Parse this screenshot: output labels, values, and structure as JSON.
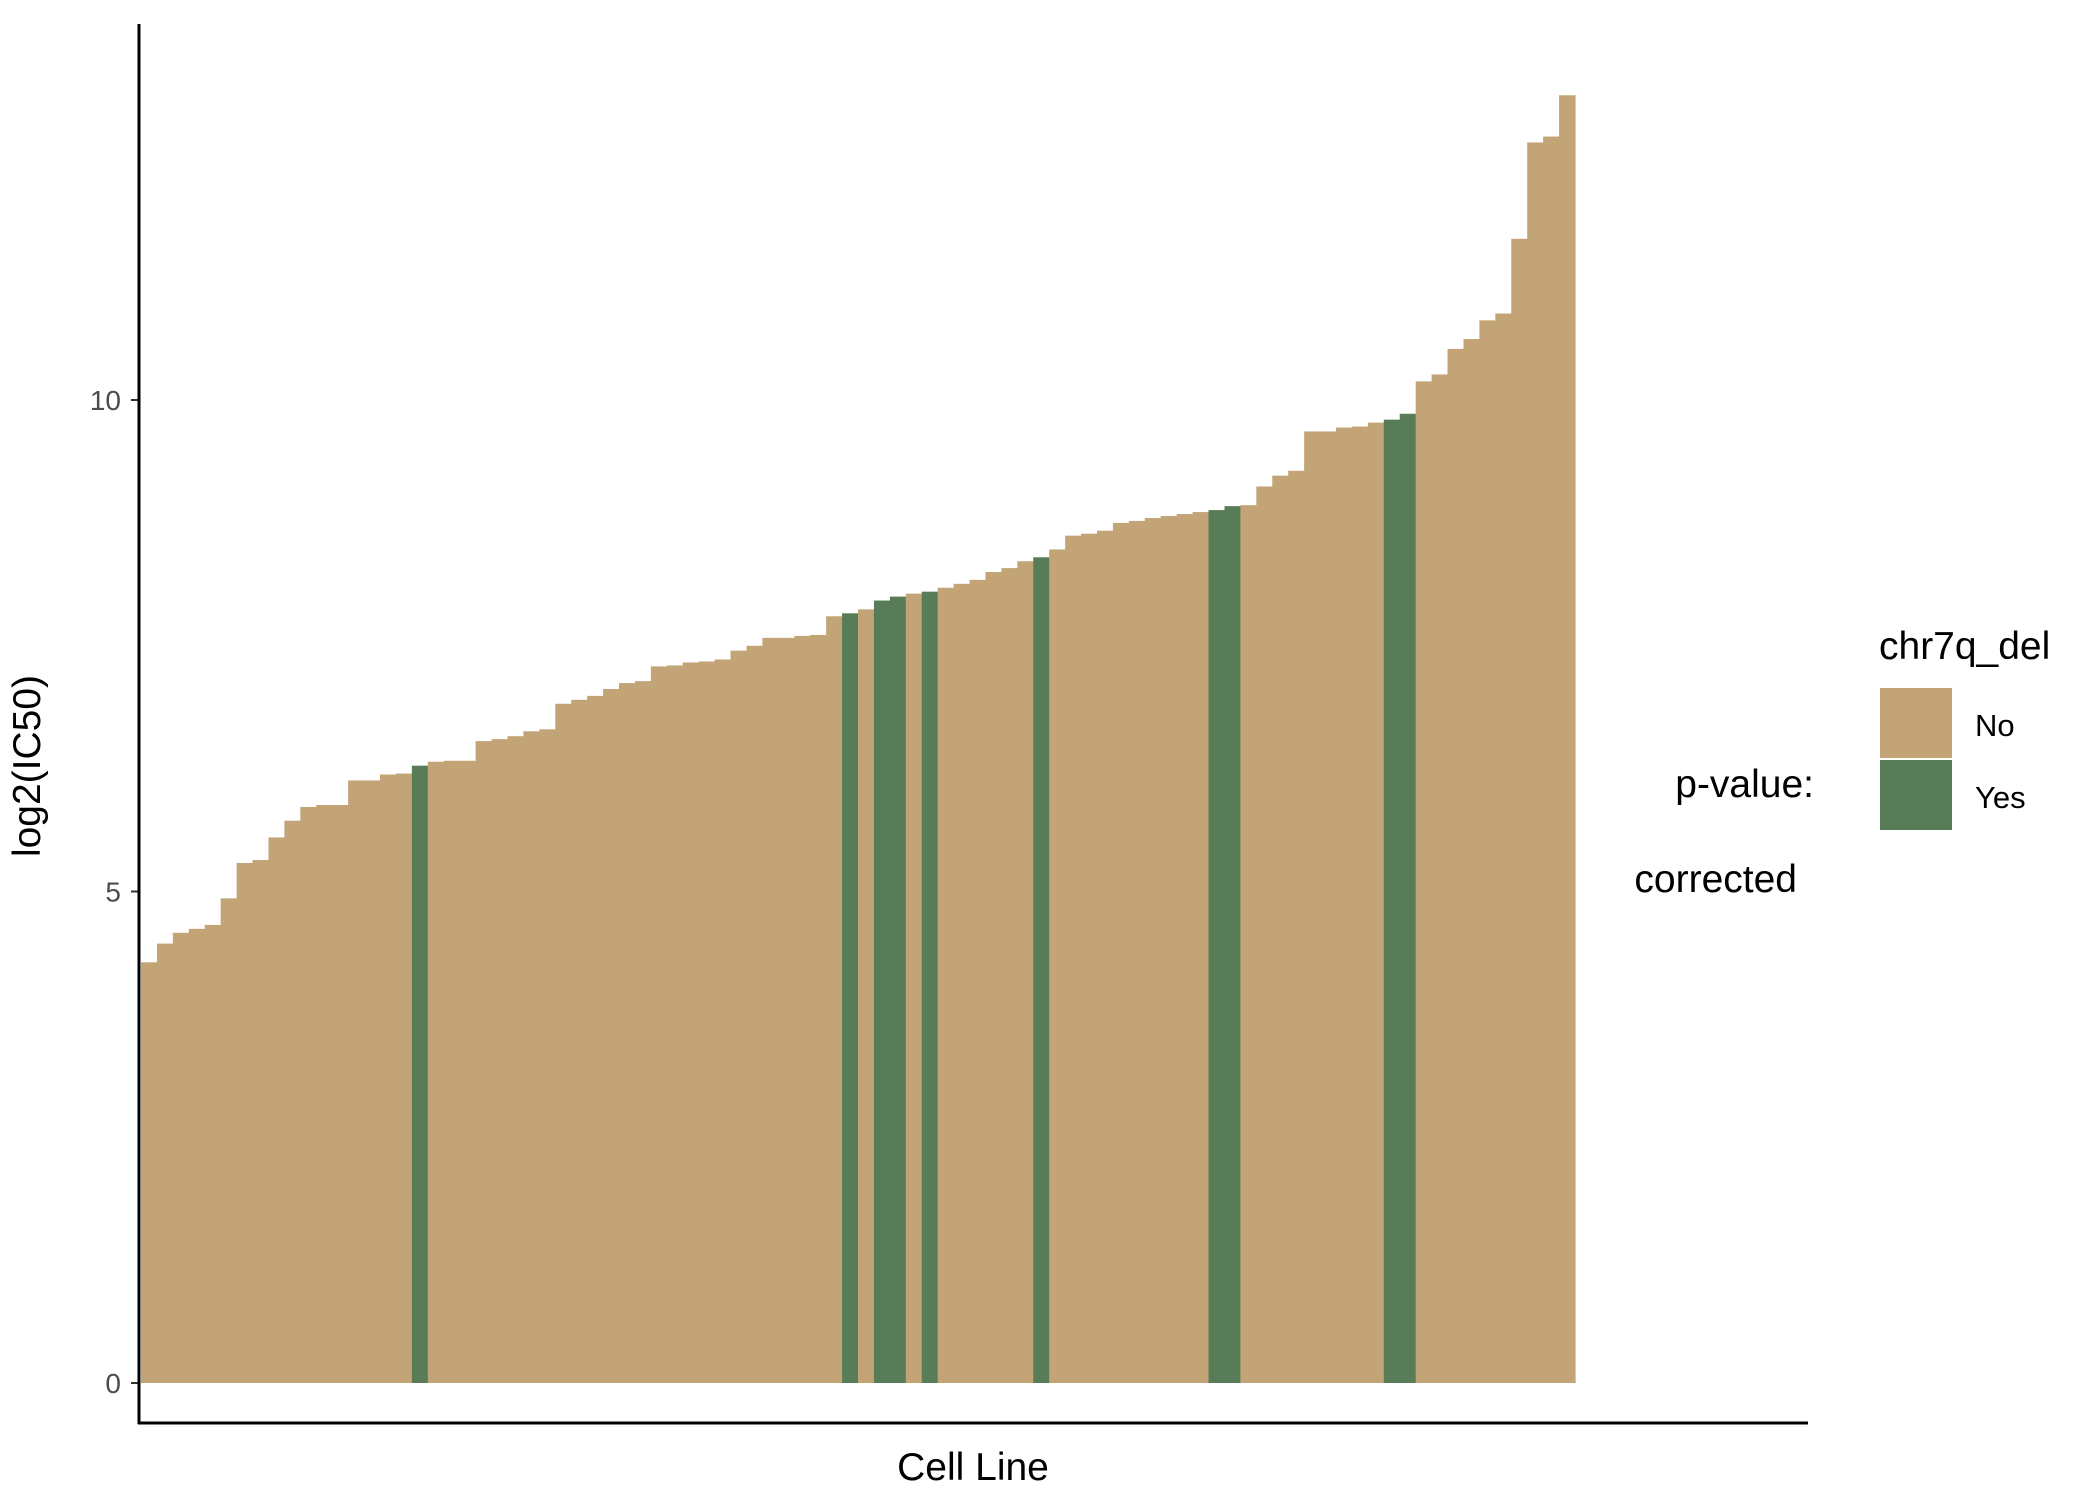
{
  "chart_data": {
    "type": "bar",
    "xlabel": "Cell Line",
    "ylabel": "log2(IC50)",
    "ylim": [
      -0.6,
      13.7
    ],
    "y_ticks": [
      "0",
      "5",
      "10"
    ],
    "grid": false,
    "legend": {
      "title": "chr7q_del",
      "placement": "right",
      "entries": [
        {
          "label": "No",
          "color": "#c2a477"
        },
        {
          "label": "Yes",
          "color": "#577c57"
        }
      ]
    },
    "annotations": [
      "p-value:",
      "corrected"
    ],
    "series_key": [
      "No",
      "Yes"
    ],
    "values": [
      4.28,
      4.47,
      4.58,
      4.62,
      4.66,
      4.93,
      5.29,
      5.32,
      5.55,
      5.72,
      5.86,
      5.88,
      5.88,
      6.13,
      6.13,
      6.19,
      6.2,
      6.28,
      6.32,
      6.33,
      6.33,
      6.53,
      6.55,
      6.58,
      6.63,
      6.65,
      6.91,
      6.95,
      6.99,
      7.06,
      7.12,
      7.14,
      7.29,
      7.3,
      7.33,
      7.34,
      7.36,
      7.45,
      7.5,
      7.58,
      7.58,
      7.6,
      7.61,
      7.8,
      7.83,
      7.87,
      7.96,
      8.0,
      8.03,
      8.05,
      8.09,
      8.13,
      8.17,
      8.25,
      8.29,
      8.36,
      8.4,
      8.48,
      8.62,
      8.64,
      8.67,
      8.75,
      8.77,
      8.8,
      8.82,
      8.84,
      8.86,
      8.88,
      8.92,
      8.93,
      9.12,
      9.23,
      9.28,
      9.68,
      9.68,
      9.72,
      9.73,
      9.77,
      9.8,
      9.86,
      10.19,
      10.26,
      10.52,
      10.62,
      10.81,
      10.88,
      11.64,
      12.62,
      12.68,
      13.1
    ],
    "groups": [
      "No",
      "No",
      "No",
      "No",
      "No",
      "No",
      "No",
      "No",
      "No",
      "No",
      "No",
      "No",
      "No",
      "No",
      "No",
      "No",
      "No",
      "Yes",
      "No",
      "No",
      "No",
      "No",
      "No",
      "No",
      "No",
      "No",
      "No",
      "No",
      "No",
      "No",
      "No",
      "No",
      "No",
      "No",
      "No",
      "No",
      "No",
      "No",
      "No",
      "No",
      "No",
      "No",
      "No",
      "No",
      "Yes",
      "No",
      "Yes",
      "Yes",
      "No",
      "Yes",
      "No",
      "No",
      "No",
      "No",
      "No",
      "No",
      "Yes",
      "No",
      "No",
      "No",
      "No",
      "No",
      "No",
      "No",
      "No",
      "No",
      "No",
      "Yes",
      "Yes",
      "No",
      "No",
      "No",
      "No",
      "No",
      "No",
      "No",
      "No",
      "No",
      "Yes",
      "Yes",
      "No",
      "No",
      "No",
      "No",
      "No",
      "No",
      "No",
      "No",
      "No",
      "No"
    ]
  }
}
